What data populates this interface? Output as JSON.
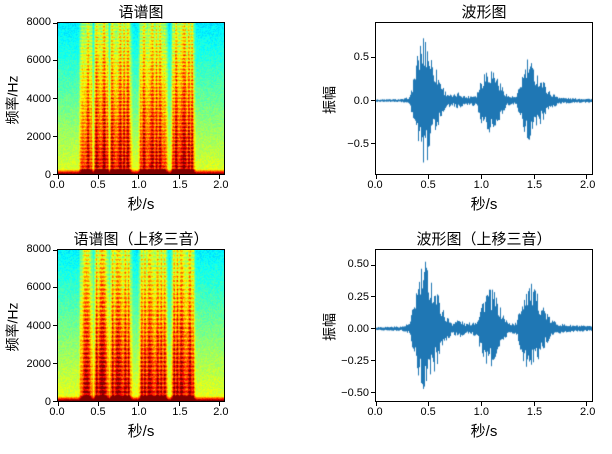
{
  "figure": {
    "background": "#ffffff"
  },
  "chart_data": [
    {
      "id": "spectrogram-original",
      "type": "heatmap",
      "title": "语谱图",
      "xlabel": "秒/s",
      "ylabel": "频率/Hz",
      "xlim": [
        0,
        2.05
      ],
      "ylim": [
        0,
        8000
      ],
      "xticks": [
        0,
        0.5,
        1.0,
        1.5,
        2.0
      ],
      "xtick_labels": [
        "0.0",
        "0.5",
        "1.0",
        "1.5",
        "2.0"
      ],
      "yticks": [
        0,
        2000,
        4000,
        6000,
        8000
      ],
      "ytick_labels": [
        "0",
        "2000",
        "4000",
        "6000",
        "8000"
      ],
      "colormap": "jet",
      "grid": false,
      "pitch_hz": 190,
      "base_level": 0.56,
      "speech_segments": [
        {
          "start": 0.27,
          "end": 0.42,
          "strength": 0.85
        },
        {
          "start": 0.44,
          "end": 0.62,
          "strength": 1.0
        },
        {
          "start": 0.63,
          "end": 0.9,
          "strength": 0.92
        },
        {
          "start": 1.0,
          "end": 1.34,
          "strength": 0.88
        },
        {
          "start": 1.4,
          "end": 1.68,
          "strength": 0.95
        }
      ]
    },
    {
      "id": "waveform-original",
      "type": "area",
      "title": "波形图",
      "xlabel": "秒/s",
      "ylabel": "振幅",
      "xlim": [
        0,
        2.05
      ],
      "ylim": [
        -0.85,
        0.9
      ],
      "xticks": [
        0,
        0.5,
        1.0,
        1.5,
        2.0
      ],
      "xtick_labels": [
        "0.0",
        "0.5",
        "1.0",
        "1.5",
        "2.0"
      ],
      "yticks": [
        -0.5,
        0.0,
        0.5
      ],
      "ytick_labels": [
        "−0.5",
        "0.0",
        "0.5"
      ],
      "line_color": "#1f77b4",
      "grid": false,
      "envelope": [
        [
          0,
          0.015
        ],
        [
          0.25,
          0.02
        ],
        [
          0.32,
          0.05
        ],
        [
          0.36,
          0.35
        ],
        [
          0.42,
          0.72
        ],
        [
          0.47,
          0.8
        ],
        [
          0.52,
          0.55
        ],
        [
          0.58,
          0.35
        ],
        [
          0.65,
          0.12
        ],
        [
          0.72,
          0.06
        ],
        [
          0.78,
          0.1
        ],
        [
          0.85,
          0.05
        ],
        [
          0.95,
          0.08
        ],
        [
          1.0,
          0.3
        ],
        [
          1.05,
          0.42
        ],
        [
          1.12,
          0.38
        ],
        [
          1.18,
          0.2
        ],
        [
          1.25,
          0.06
        ],
        [
          1.33,
          0.05
        ],
        [
          1.38,
          0.3
        ],
        [
          1.44,
          0.52
        ],
        [
          1.5,
          0.38
        ],
        [
          1.58,
          0.25
        ],
        [
          1.65,
          0.1
        ],
        [
          1.75,
          0.04
        ],
        [
          1.85,
          0.03
        ],
        [
          2.05,
          0.025
        ]
      ]
    },
    {
      "id": "spectrogram-shifted",
      "type": "heatmap",
      "title": "语谱图（上移三音）",
      "xlabel": "秒/s",
      "ylabel": "频率/Hz",
      "xlim": [
        0,
        2.05
      ],
      "ylim": [
        0,
        8000
      ],
      "xticks": [
        0,
        0.5,
        1.0,
        1.5,
        2.0
      ],
      "xtick_labels": [
        "0.0",
        "0.5",
        "1.0",
        "1.5",
        "2.0"
      ],
      "yticks": [
        0,
        2000,
        4000,
        6000,
        8000
      ],
      "ytick_labels": [
        "0",
        "2000",
        "4000",
        "6000",
        "8000"
      ],
      "colormap": "jet",
      "grid": false,
      "pitch_hz": 226,
      "base_level": 0.57,
      "speech_segments": [
        {
          "start": 0.27,
          "end": 0.42,
          "strength": 0.85
        },
        {
          "start": 0.44,
          "end": 0.62,
          "strength": 0.98
        },
        {
          "start": 0.63,
          "end": 0.9,
          "strength": 0.92
        },
        {
          "start": 1.0,
          "end": 1.34,
          "strength": 0.88
        },
        {
          "start": 1.4,
          "end": 1.68,
          "strength": 0.95
        }
      ]
    },
    {
      "id": "waveform-shifted",
      "type": "area",
      "title": "波形图（上移三音）",
      "xlabel": "秒/s",
      "ylabel": "振幅",
      "xlim": [
        0,
        2.05
      ],
      "ylim": [
        -0.57,
        0.62
      ],
      "xticks": [
        0,
        0.5,
        1.0,
        1.5,
        2.0
      ],
      "xtick_labels": [
        "0.0",
        "0.5",
        "1.0",
        "1.5",
        "2.0"
      ],
      "yticks": [
        -0.5,
        -0.25,
        0.0,
        0.25,
        0.5
      ],
      "ytick_labels": [
        "−0.50",
        "−0.25",
        "0.00",
        "0.25",
        "0.50"
      ],
      "line_color": "#1f77b4",
      "grid": false,
      "envelope": [
        [
          0,
          0.015
        ],
        [
          0.25,
          0.02
        ],
        [
          0.32,
          0.05
        ],
        [
          0.36,
          0.25
        ],
        [
          0.42,
          0.48
        ],
        [
          0.47,
          0.55
        ],
        [
          0.52,
          0.42
        ],
        [
          0.58,
          0.3
        ],
        [
          0.65,
          0.12
        ],
        [
          0.72,
          0.05
        ],
        [
          0.78,
          0.08
        ],
        [
          0.85,
          0.04
        ],
        [
          0.95,
          0.07
        ],
        [
          1.0,
          0.22
        ],
        [
          1.05,
          0.33
        ],
        [
          1.12,
          0.3
        ],
        [
          1.18,
          0.16
        ],
        [
          1.25,
          0.05
        ],
        [
          1.33,
          0.05
        ],
        [
          1.38,
          0.25
        ],
        [
          1.44,
          0.4
        ],
        [
          1.5,
          0.32
        ],
        [
          1.58,
          0.2
        ],
        [
          1.65,
          0.08
        ],
        [
          1.75,
          0.04
        ],
        [
          1.85,
          0.03
        ],
        [
          2.05,
          0.02
        ]
      ]
    }
  ]
}
